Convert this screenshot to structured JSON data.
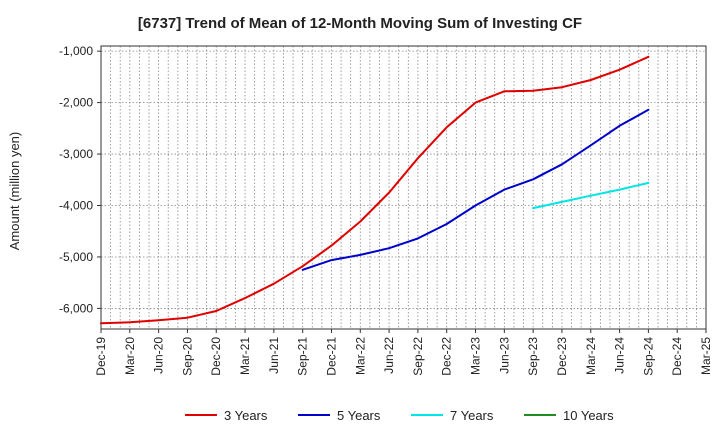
{
  "chart_data": {
    "type": "line",
    "title": "[6737]  Trend of Mean of 12-Month Moving Sum of Investing CF",
    "xlabel": "",
    "ylabel": "Amount (million yen)",
    "ylim": [
      -6400,
      -900
    ],
    "yticks": [
      -1000,
      -2000,
      -3000,
      -4000,
      -5000,
      -6000
    ],
    "ytick_labels": [
      "-1,000",
      "-2,000",
      "-3,000",
      "-4,000",
      "-5,000",
      "-6,000"
    ],
    "x_categories": [
      "Dec-19",
      "Mar-20",
      "Jun-20",
      "Sep-20",
      "Dec-20",
      "Mar-21",
      "Jun-21",
      "Sep-21",
      "Dec-21",
      "Mar-22",
      "Jun-22",
      "Sep-22",
      "Dec-22",
      "Mar-23",
      "Jun-23",
      "Sep-23",
      "Dec-23",
      "Mar-24",
      "Jun-24",
      "Sep-24",
      "Dec-24",
      "Mar-25"
    ],
    "grid": true,
    "legend_position": "bottom",
    "series": [
      {
        "name": "3 Years",
        "color": "#e00000",
        "start_index": 0,
        "values": [
          -6290,
          -6270,
          -6230,
          -6180,
          -6050,
          -5800,
          -5520,
          -5180,
          -4780,
          -4310,
          -3750,
          -3080,
          -2480,
          -2000,
          -1780,
          -1770,
          -1700,
          -1560,
          -1360,
          -1110
        ]
      },
      {
        "name": "5 Years",
        "color": "#0000cc",
        "start_index": 7,
        "values": [
          -5250,
          -5060,
          -4960,
          -4830,
          -4640,
          -4360,
          -4000,
          -3690,
          -3490,
          -3200,
          -2830,
          -2450,
          -2140
        ]
      },
      {
        "name": "7 Years",
        "color": "#00e5e5",
        "start_index": 15,
        "values": [
          -4050,
          -3930,
          -3810,
          -3690,
          -3560
        ]
      },
      {
        "name": "10 Years",
        "color": "#228b22",
        "start_index": 0,
        "values": []
      }
    ]
  }
}
